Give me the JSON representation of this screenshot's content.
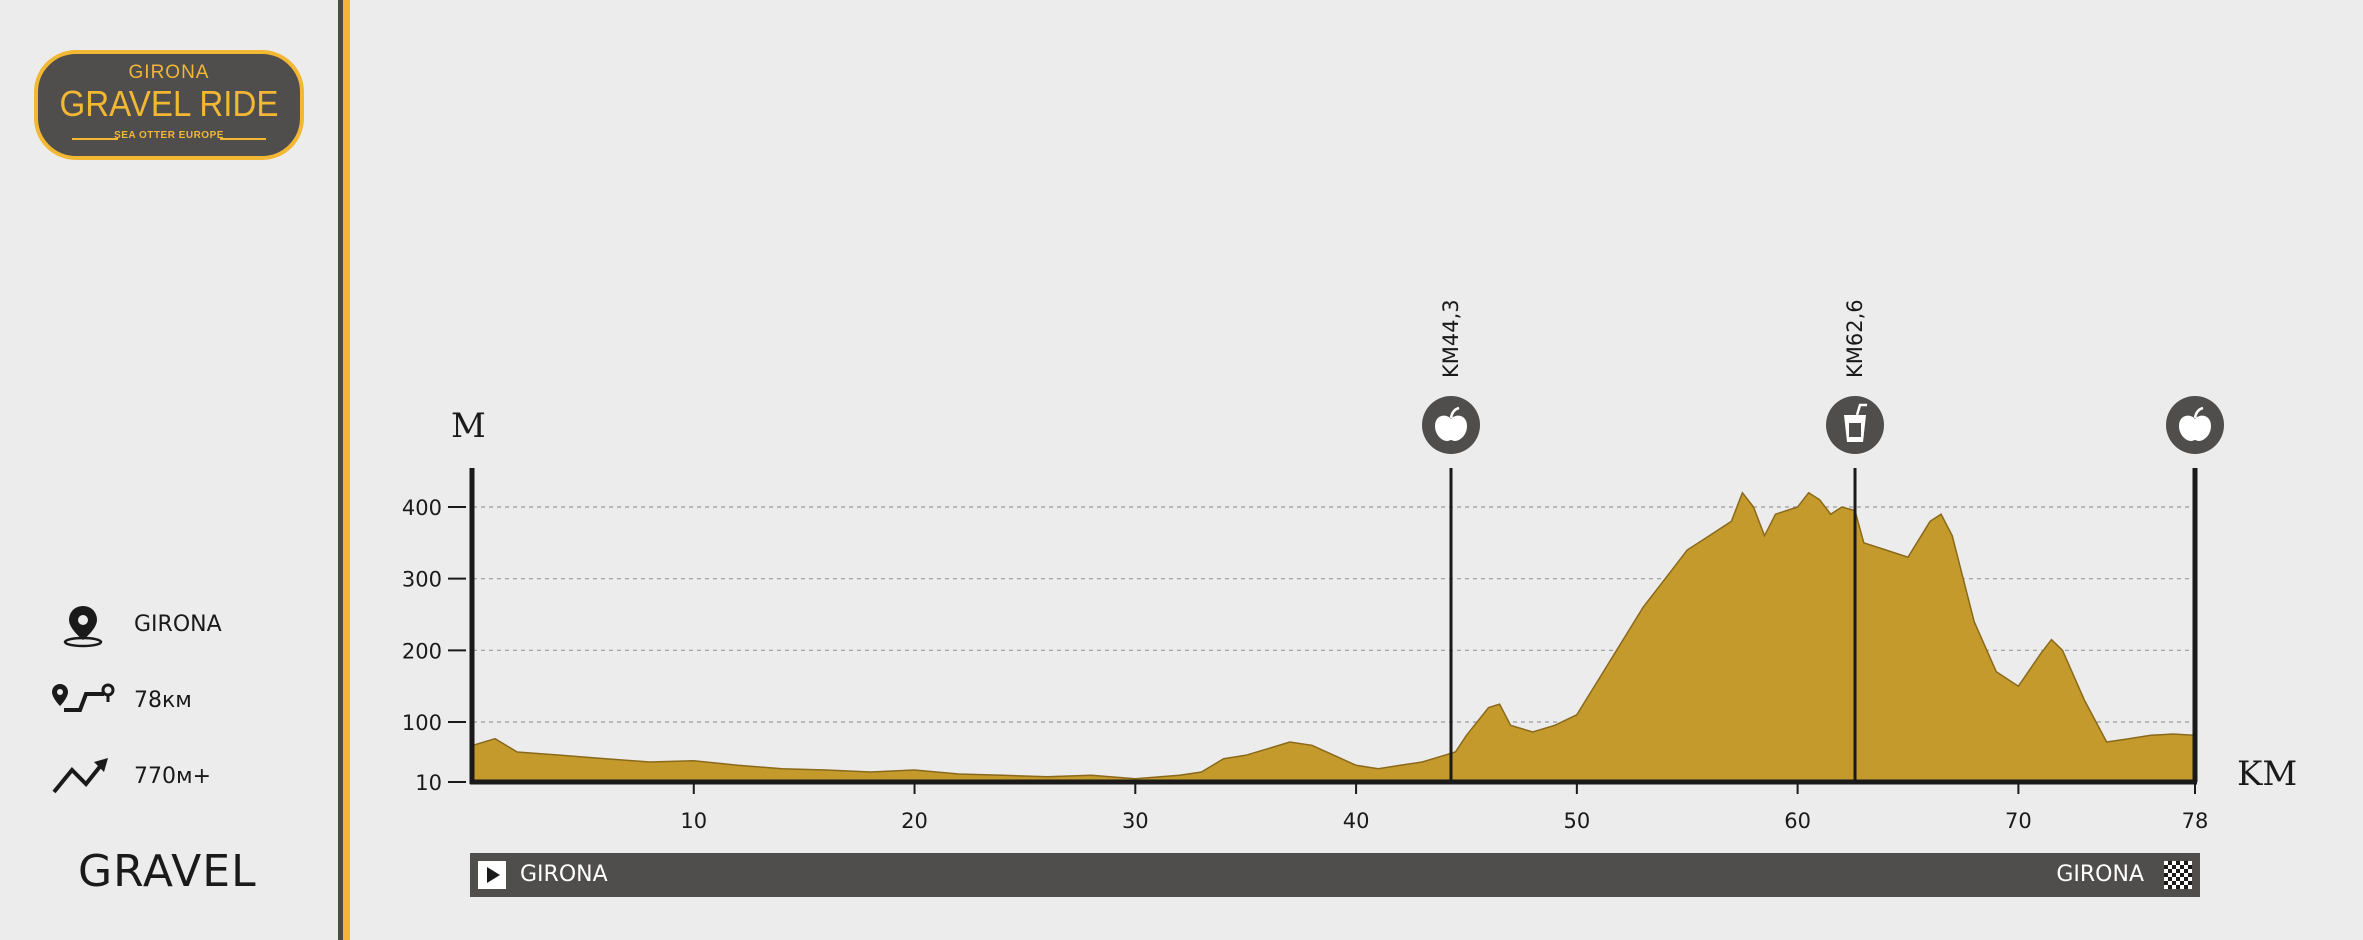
{
  "logo": {
    "top": "GIRONA",
    "main": "GRAVEL RIDE",
    "sub": "SEA OTTER EUROPE"
  },
  "stats": {
    "location": {
      "icon": "location-pin-icon",
      "value": "GIRONA"
    },
    "distance": {
      "icon": "route-icon",
      "value": "78км"
    },
    "elevation": {
      "icon": "elevation-gain-icon",
      "value": "770м+"
    }
  },
  "category": "GRAVEL",
  "colors": {
    "terrain": "#c49a2c",
    "accent": "#f2b733",
    "bar": "#4f4e4d",
    "text": "#1a1a1a"
  },
  "chart_data": {
    "type": "area",
    "ylabel": "M",
    "xlabel": "KM",
    "xlim": [
      0,
      78
    ],
    "ylim": [
      10,
      450
    ],
    "y_ticks": [
      10,
      100,
      200,
      300,
      400
    ],
    "x_ticks": [
      10,
      20,
      30,
      40,
      50,
      60,
      70,
      78
    ],
    "grid": true,
    "series": [
      {
        "x": [
          0,
          1,
          2,
          4,
          6,
          8,
          10,
          12,
          14,
          16,
          18,
          20,
          22,
          24,
          26,
          28,
          30,
          32,
          33,
          34,
          35,
          36,
          37,
          38,
          39,
          40,
          41,
          42,
          43,
          44,
          44.5,
          45,
          46,
          46.5,
          47,
          48,
          49,
          50,
          51,
          52,
          53,
          54,
          55,
          56,
          57,
          57.5,
          58,
          58.5,
          59,
          60,
          60.5,
          61,
          61.5,
          62,
          62.6,
          63,
          64,
          65,
          66,
          66.5,
          67,
          67.5,
          68,
          69,
          70,
          71,
          71.5,
          72,
          73,
          74,
          75,
          76,
          77,
          78
        ],
        "y": [
          65,
          75,
          55,
          50,
          45,
          40,
          42,
          35,
          30,
          28,
          25,
          28,
          22,
          20,
          18,
          20,
          15,
          20,
          25,
          45,
          50,
          60,
          70,
          65,
          50,
          35,
          30,
          35,
          40,
          50,
          55,
          80,
          120,
          125,
          95,
          85,
          95,
          110,
          160,
          210,
          260,
          300,
          340,
          360,
          380,
          420,
          400,
          360,
          390,
          400,
          420,
          410,
          390,
          400,
          395,
          350,
          340,
          330,
          380,
          390,
          360,
          300,
          240,
          170,
          150,
          195,
          215,
          200,
          130,
          70,
          75,
          80,
          82,
          80
        ]
      }
    ],
    "markers": [
      {
        "km": 44.3,
        "label": "KM44,3",
        "icon": "apple-icon"
      },
      {
        "km": 62.6,
        "label": "KM62,6",
        "icon": "drink-icon"
      },
      {
        "km": 78,
        "label": "",
        "icon": "apple-icon"
      }
    ]
  },
  "route": {
    "start": "GIRONA",
    "end": "GIRONA"
  }
}
